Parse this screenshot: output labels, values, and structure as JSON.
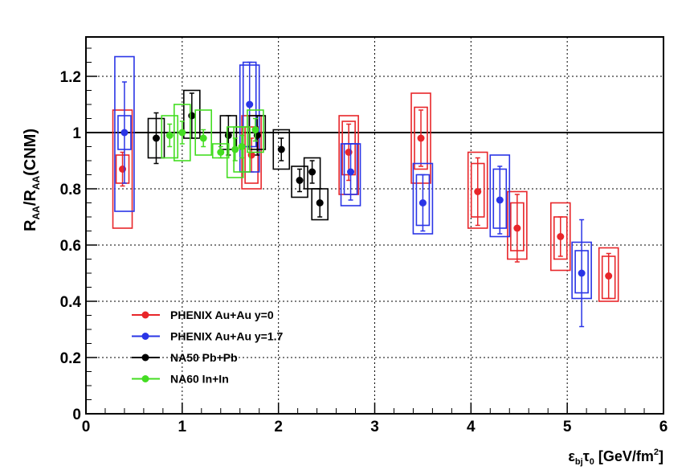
{
  "chart_data": {
    "type": "scatter",
    "title": "",
    "xlabel": {
      "base": "ε",
      "sub1": "bj",
      "mid": "τ",
      "sub2": "0",
      "rest": " [GeV/fm",
      "sup": "2",
      "close": "]"
    },
    "ylabel": {
      "r1": "R",
      "s1": "AA",
      "slash": "/R",
      "s2": "AA",
      "rest": "(CNM)"
    },
    "xlim": [
      0,
      6
    ],
    "ylim": [
      0,
      1.34
    ],
    "x_ticks": [
      "0",
      "1",
      "2",
      "3",
      "4",
      "5",
      "6"
    ],
    "y_ticks": [
      "0",
      "0.2",
      "0.4",
      "0.6",
      "0.8",
      "1",
      "1.2"
    ],
    "grid": true,
    "reference_line": 1.0,
    "legend_position": "bottom-left",
    "series": [
      {
        "name": "PHENIX Au+Au y=0",
        "color": "#e8262a",
        "points": [
          {
            "x": 0.38,
            "y": 0.87,
            "err": 0.06,
            "sys": [
              0.82,
              0.92
            ],
            "box2": [
              0.66,
              1.08
            ]
          },
          {
            "x": 1.72,
            "y": 0.92,
            "err": 0.06,
            "sys": [
              0.82,
              1.02
            ],
            "box2": [
              0.8,
              1.06
            ]
          },
          {
            "x": 2.73,
            "y": 0.93,
            "err": 0.1,
            "sys": [
              0.85,
              1.04
            ],
            "box2": [
              0.78,
              1.06
            ]
          },
          {
            "x": 3.48,
            "y": 0.98,
            "err": 0.1,
            "sys": [
              0.87,
              1.09
            ],
            "box2": [
              0.82,
              1.14
            ]
          },
          {
            "x": 4.07,
            "y": 0.79,
            "err": 0.12,
            "sys": [
              0.7,
              0.89
            ],
            "box2": [
              0.66,
              0.93
            ]
          },
          {
            "x": 4.48,
            "y": 0.66,
            "err": 0.12,
            "sys": [
              0.58,
              0.75
            ],
            "box2": [
              0.55,
              0.79
            ]
          },
          {
            "x": 4.93,
            "y": 0.63,
            "err": 0.07,
            "sys": [
              0.55,
              0.7
            ],
            "box2": [
              0.51,
              0.75
            ]
          },
          {
            "x": 5.43,
            "y": 0.49,
            "err": 0.08,
            "sys": [
              0.41,
              0.56
            ],
            "box2": [
              0.4,
              0.59
            ]
          }
        ]
      },
      {
        "name": "PHENIX Au+Au y=1.7",
        "color": "#2a35e6",
        "points": [
          {
            "x": 0.4,
            "y": 1.0,
            "err": 0.18,
            "sys": [
              0.94,
              1.06
            ],
            "box2": [
              0.72,
              1.27
            ]
          },
          {
            "x": 1.7,
            "y": 1.1,
            "err": 0.15,
            "sys": [
              0.95,
              1.25
            ],
            "box2": [
              0.86,
              1.24
            ]
          },
          {
            "x": 2.75,
            "y": 0.86,
            "err": 0.1,
            "sys": [
              0.78,
              0.96
            ],
            "box2": [
              0.74,
              0.96
            ]
          },
          {
            "x": 3.5,
            "y": 0.75,
            "err": 0.1,
            "sys": [
              0.67,
              0.85
            ],
            "box2": [
              0.64,
              0.89
            ]
          },
          {
            "x": 4.3,
            "y": 0.76,
            "err": 0.12,
            "sys": [
              0.66,
              0.87
            ],
            "box2": [
              0.63,
              0.92
            ]
          },
          {
            "x": 5.15,
            "y": 0.5,
            "err": 0.19,
            "sys": [
              0.43,
              0.58
            ],
            "box2": [
              0.41,
              0.61
            ]
          }
        ]
      },
      {
        "name": "NA50 Pb+Pb",
        "color": "#000000",
        "points": [
          {
            "x": 0.73,
            "y": 0.98,
            "err": 0.09,
            "sys": [
              0.91,
              1.05
            ]
          },
          {
            "x": 1.1,
            "y": 1.06,
            "err": 0.08,
            "sys": [
              0.98,
              1.15
            ]
          },
          {
            "x": 1.48,
            "y": 0.99,
            "err": 0.07,
            "sys": [
              0.94,
              1.06
            ]
          },
          {
            "x": 1.78,
            "y": 0.99,
            "err": 0.07,
            "sys": [
              0.94,
              1.06
            ]
          },
          {
            "x": 2.03,
            "y": 0.94,
            "err": 0.04,
            "sys": [
              0.87,
              1.01
            ]
          },
          {
            "x": 2.22,
            "y": 0.83,
            "err": 0.04,
            "sys": [
              0.77,
              0.88
            ]
          },
          {
            "x": 2.35,
            "y": 0.86,
            "err": 0.04,
            "sys": [
              0.8,
              0.91
            ]
          },
          {
            "x": 2.43,
            "y": 0.75,
            "err": 0.05,
            "sys": [
              0.69,
              0.8
            ]
          }
        ]
      },
      {
        "name": "NA60 In+In",
        "color": "#44dd22",
        "points": [
          {
            "x": 0.87,
            "y": 0.99,
            "err": 0.04,
            "sys": [
              0.91,
              1.06
            ]
          },
          {
            "x": 1.0,
            "y": 1.0,
            "err": 0.04,
            "sys": [
              0.9,
              1.1
            ]
          },
          {
            "x": 1.22,
            "y": 0.98,
            "err": 0.03,
            "sys": [
              0.92,
              1.08
            ]
          },
          {
            "x": 1.4,
            "y": 0.93,
            "err": 0.02,
            "sys": [
              0.91,
              0.96
            ]
          },
          {
            "x": 1.55,
            "y": 0.94,
            "err": 0.04,
            "sys": [
              0.84,
              1.02
            ]
          },
          {
            "x": 1.62,
            "y": 0.95,
            "err": 0.04,
            "sys": [
              0.86,
              1.02
            ]
          },
          {
            "x": 1.76,
            "y": 1.01,
            "err": 0.04,
            "sys": [
              0.93,
              1.08
            ]
          }
        ]
      }
    ]
  }
}
